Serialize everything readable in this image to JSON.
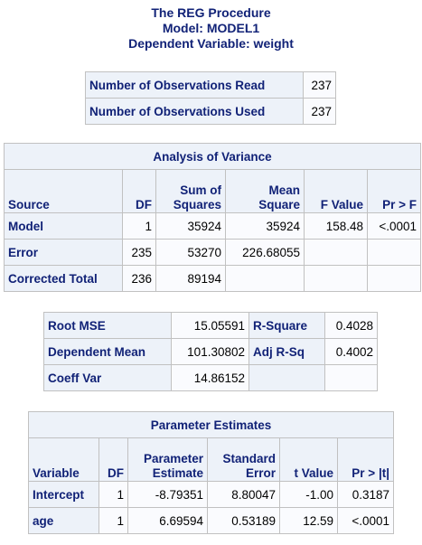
{
  "titles": {
    "line1": "The REG Procedure",
    "line2": "Model: MODEL1",
    "line3": "Dependent Variable: weight"
  },
  "observations": {
    "rows": [
      {
        "label": "Number of Observations Read",
        "value": "237"
      },
      {
        "label": "Number of Observations Used",
        "value": "237"
      }
    ]
  },
  "anova": {
    "caption": "Analysis of Variance",
    "headers": {
      "source": "Source",
      "df": "DF",
      "ss1": "Sum of",
      "ss2": "Squares",
      "ms1": "Mean",
      "ms2": "Square",
      "f": "F Value",
      "p": "Pr > F"
    },
    "rows": [
      {
        "source": "Model",
        "df": "1",
        "ss": "35924",
        "ms": "35924",
        "f": "158.48",
        "p": "<.0001"
      },
      {
        "source": "Error",
        "df": "235",
        "ss": "53270",
        "ms": "226.68055",
        "f": "",
        "p": ""
      },
      {
        "source": "Corrected Total",
        "df": "236",
        "ss": "89194",
        "ms": "",
        "f": "",
        "p": ""
      }
    ]
  },
  "fit": {
    "rows": [
      {
        "label1": "Root MSE",
        "value1": "15.05591",
        "label2": "R-Square",
        "value2": "0.4028"
      },
      {
        "label1": "Dependent Mean",
        "value1": "101.30802",
        "label2": "Adj R-Sq",
        "value2": "0.4002"
      },
      {
        "label1": "Coeff Var",
        "value1": "14.86152",
        "label2": "",
        "value2": ""
      }
    ]
  },
  "params": {
    "caption": "Parameter Estimates",
    "headers": {
      "variable": "Variable",
      "df": "DF",
      "est1": "Parameter",
      "est2": "Estimate",
      "se1": "Standard",
      "se2": "Error",
      "t": "t Value",
      "p": "Pr > |t|"
    },
    "rows": [
      {
        "variable": "Intercept",
        "df": "1",
        "est": "-8.79351",
        "se": "8.80047",
        "t": "-1.00",
        "p": "0.3187"
      },
      {
        "variable": "age",
        "df": "1",
        "est": "6.69594",
        "se": "0.53189",
        "t": "12.59",
        "p": "<.0001"
      }
    ]
  },
  "colors": {
    "header_text": "#112277",
    "header_bg": "#edf2f9",
    "cell_bg": "#fafbfe",
    "border": "#c1c1c1"
  }
}
